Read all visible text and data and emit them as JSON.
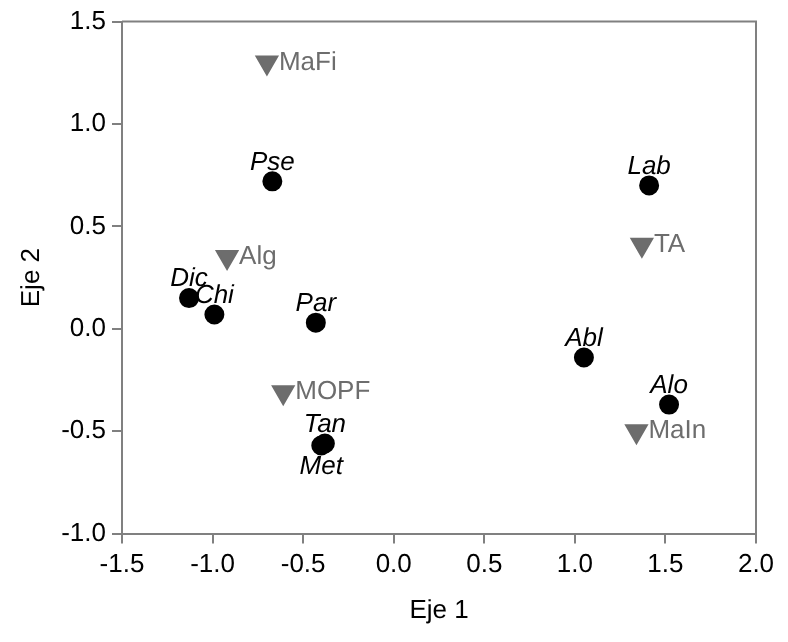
{
  "chart_data": {
    "type": "scatter",
    "xlabel": "Eje 1",
    "ylabel": "Eje 2",
    "xlim": [
      -1.5,
      2.0
    ],
    "ylim": [
      -1.0,
      1.5
    ],
    "xticks": [
      {
        "value": -1.5,
        "label": "-1.5"
      },
      {
        "value": -1,
        "label": "-1.0"
      },
      {
        "value": -0.5,
        "label": "-0.5"
      },
      {
        "value": 0,
        "label": "0.0"
      },
      {
        "value": 0.5,
        "label": "0.5"
      },
      {
        "value": 1,
        "label": "1.0"
      },
      {
        "value": 1.5,
        "label": "1.5"
      },
      {
        "value": 2,
        "label": "2.0"
      }
    ],
    "yticks": [
      {
        "value": -1,
        "label": "-1.0"
      },
      {
        "value": -0.5,
        "label": "-0.5"
      },
      {
        "value": 0,
        "label": "0.0"
      },
      {
        "value": 0.5,
        "label": "0.5"
      },
      {
        "value": 1,
        "label": "1.0"
      },
      {
        "value": 1.5,
        "label": "1.5"
      }
    ],
    "grid": false,
    "legend": false,
    "series": [
      {
        "color": "#000000",
        "marker": "circle",
        "x": [
          -0.67,
          -1.13,
          -0.99,
          -0.43,
          -0.38,
          -0.4,
          1.41,
          1.05,
          1.52
        ],
        "values": [
          0.72,
          0.15,
          0.07,
          0.03,
          -0.56,
          -0.57,
          0.7,
          -0.14,
          -0.37
        ],
        "value_labels": [
          "Pse",
          "Dic",
          "Chi",
          "Par",
          "Tan",
          "Met",
          "Lab",
          "Abl",
          "Alo"
        ]
      },
      {
        "color": "#6d6d6d",
        "marker": "triangle",
        "x": [
          -0.7,
          -0.92,
          -0.61,
          1.37,
          1.34
        ],
        "values": [
          1.3,
          0.35,
          -0.31,
          0.41,
          -0.5
        ],
        "value_labels": [
          "MaFi",
          "Alg",
          "MOPF",
          "TA",
          "MaIn"
        ]
      }
    ]
  }
}
